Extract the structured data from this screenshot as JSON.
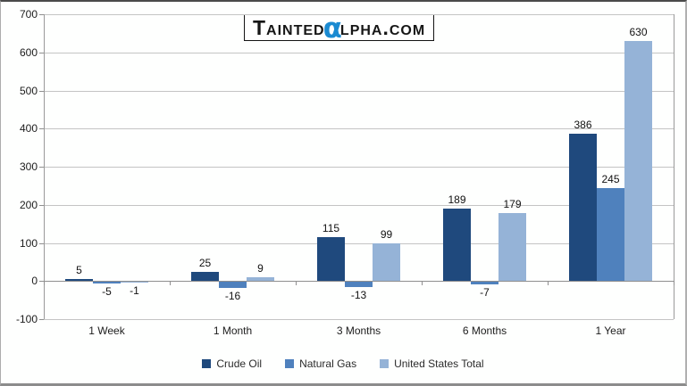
{
  "logo": {
    "prefix": "Tainted",
    "alpha": "α",
    "suffix": "lpha.com",
    "alpha_color": "#1b8ad1",
    "text_color": "#161616"
  },
  "chart_data": {
    "type": "bar",
    "title": "",
    "xlabel": "",
    "ylabel": "",
    "categories": [
      "1 Week",
      "1 Month",
      "3 Months",
      "6 Months",
      "1 Year"
    ],
    "series": [
      {
        "name": "Crude Oil",
        "color": "#1F497D",
        "values": [
          5,
          25,
          115,
          189,
          386
        ]
      },
      {
        "name": "Natural Gas",
        "color": "#4F81BD",
        "values": [
          -5,
          -16,
          -13,
          -7,
          245
        ]
      },
      {
        "name": "United States Total",
        "color": "#95B3D7",
        "values": [
          -1,
          9,
          99,
          179,
          630
        ]
      }
    ],
    "ylim": [
      -100,
      700
    ],
    "yticks": [
      700,
      600,
      500,
      400,
      300,
      200,
      100,
      0,
      -100
    ],
    "grid": true,
    "legend_position": "bottom",
    "data_labels": true
  }
}
